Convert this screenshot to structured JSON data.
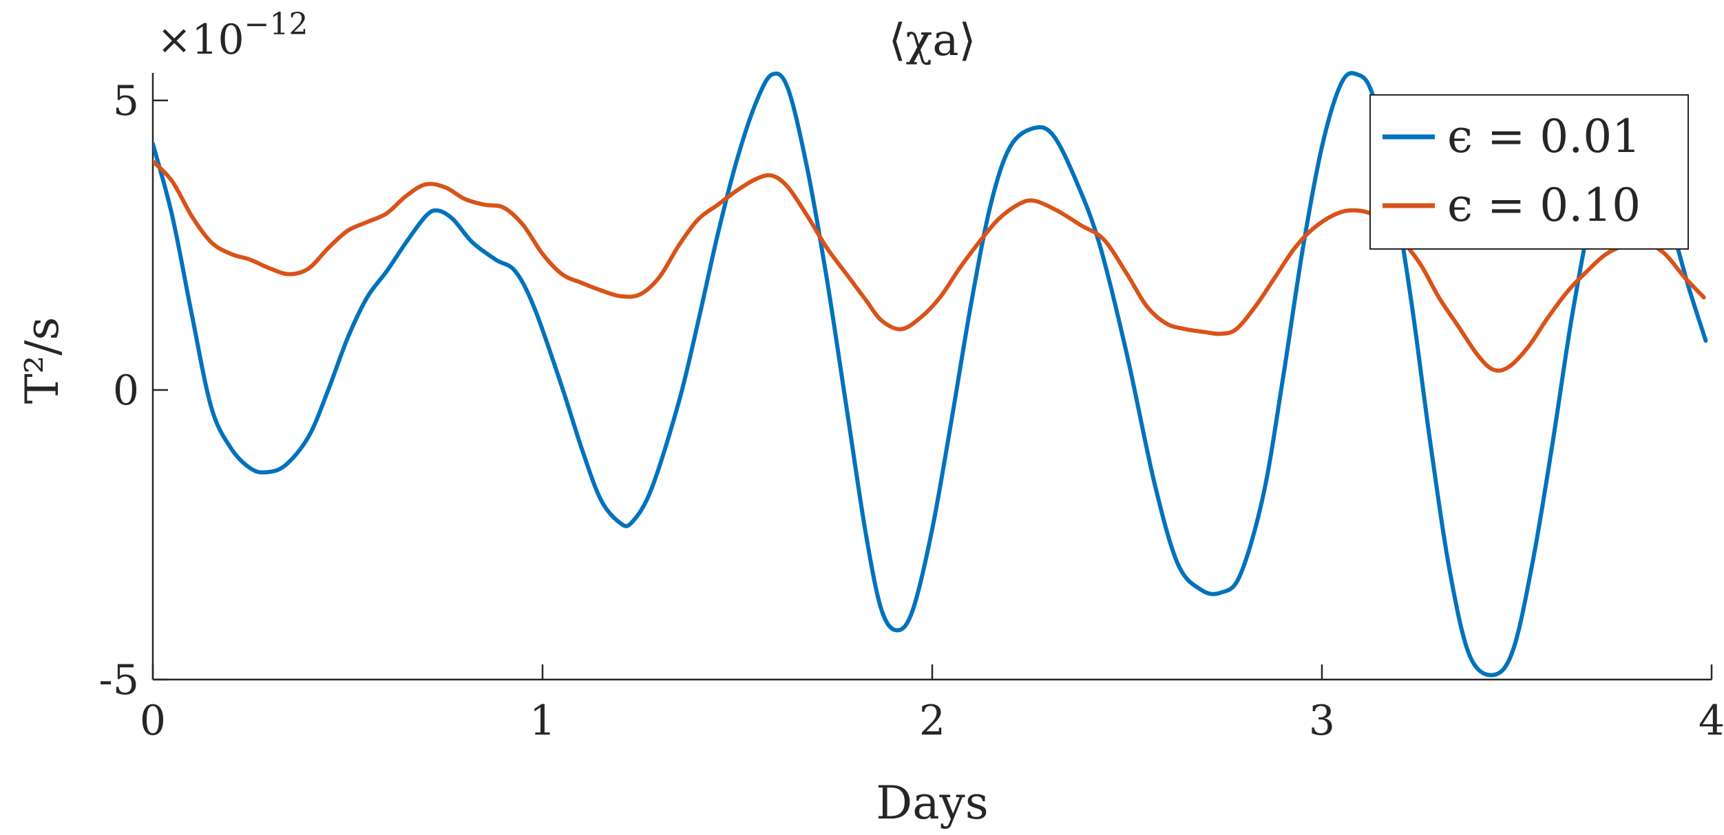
{
  "chart_data": {
    "type": "line",
    "title": "⟨χa⟩",
    "xlabel": "Days",
    "ylabel": "T²/s",
    "y_exponent_label": "×10",
    "y_exponent_power": "−12",
    "xlim": [
      0,
      4
    ],
    "ylim": [
      -5,
      5.5
    ],
    "x_ticks": [
      0,
      1,
      2,
      3,
      4
    ],
    "x_tick_labels": [
      "0",
      "1",
      "2",
      "3",
      "4"
    ],
    "y_ticks": [
      -5,
      0,
      5
    ],
    "y_tick_labels": [
      "-5",
      "0",
      "5"
    ],
    "grid": false,
    "legend_position": "top-right",
    "series": [
      {
        "name": "ϵ = 0.01",
        "color": "#0072BD",
        "points": [
          [
            0.0,
            4.25
          ],
          [
            0.05,
            3.0
          ],
          [
            0.1,
            1.3
          ],
          [
            0.15,
            -0.3
          ],
          [
            0.2,
            -1.0
          ],
          [
            0.25,
            -1.35
          ],
          [
            0.29,
            -1.42
          ],
          [
            0.34,
            -1.3
          ],
          [
            0.4,
            -0.8
          ],
          [
            0.45,
            0.0
          ],
          [
            0.5,
            0.9
          ],
          [
            0.55,
            1.6
          ],
          [
            0.6,
            2.05
          ],
          [
            0.65,
            2.55
          ],
          [
            0.7,
            3.0
          ],
          [
            0.73,
            3.1
          ],
          [
            0.77,
            2.95
          ],
          [
            0.82,
            2.55
          ],
          [
            0.88,
            2.25
          ],
          [
            0.93,
            2.05
          ],
          [
            0.98,
            1.4
          ],
          [
            1.05,
            0.05
          ],
          [
            1.1,
            -1.0
          ],
          [
            1.15,
            -1.9
          ],
          [
            1.2,
            -2.3
          ],
          [
            1.23,
            -2.28
          ],
          [
            1.28,
            -1.7
          ],
          [
            1.35,
            -0.2
          ],
          [
            1.4,
            1.2
          ],
          [
            1.45,
            2.7
          ],
          [
            1.5,
            4.0
          ],
          [
            1.55,
            5.0
          ],
          [
            1.59,
            5.45
          ],
          [
            1.63,
            5.2
          ],
          [
            1.68,
            3.8
          ],
          [
            1.73,
            1.9
          ],
          [
            1.78,
            -0.3
          ],
          [
            1.83,
            -2.5
          ],
          [
            1.87,
            -3.8
          ],
          [
            1.91,
            -4.15
          ],
          [
            1.95,
            -3.8
          ],
          [
            2.0,
            -2.4
          ],
          [
            2.05,
            -0.5
          ],
          [
            2.1,
            1.5
          ],
          [
            2.15,
            3.2
          ],
          [
            2.2,
            4.2
          ],
          [
            2.26,
            4.52
          ],
          [
            2.31,
            4.4
          ],
          [
            2.37,
            3.6
          ],
          [
            2.43,
            2.5
          ],
          [
            2.5,
            0.6
          ],
          [
            2.57,
            -1.6
          ],
          [
            2.63,
            -3.0
          ],
          [
            2.69,
            -3.45
          ],
          [
            2.74,
            -3.5
          ],
          [
            2.79,
            -3.2
          ],
          [
            2.85,
            -1.8
          ],
          [
            2.9,
            0.2
          ],
          [
            2.95,
            2.4
          ],
          [
            3.0,
            4.2
          ],
          [
            3.05,
            5.3
          ],
          [
            3.09,
            5.45
          ],
          [
            3.13,
            5.1
          ],
          [
            3.18,
            3.6
          ],
          [
            3.23,
            1.5
          ],
          [
            3.28,
            -1.0
          ],
          [
            3.33,
            -3.2
          ],
          [
            3.38,
            -4.6
          ],
          [
            3.44,
            -4.92
          ],
          [
            3.49,
            -4.5
          ],
          [
            3.54,
            -3.0
          ],
          [
            3.59,
            -1.0
          ],
          [
            3.64,
            1.2
          ],
          [
            3.69,
            3.0
          ],
          [
            3.74,
            4.2
          ],
          [
            3.79,
            4.4
          ],
          [
            3.84,
            4.0
          ],
          [
            3.89,
            3.0
          ],
          [
            3.94,
            1.8
          ],
          [
            3.985,
            0.85
          ]
        ]
      },
      {
        "name": "ϵ = 0.10",
        "color": "#D95319",
        "points": [
          [
            0.0,
            3.95
          ],
          [
            0.05,
            3.6
          ],
          [
            0.1,
            3.0
          ],
          [
            0.15,
            2.55
          ],
          [
            0.2,
            2.35
          ],
          [
            0.25,
            2.25
          ],
          [
            0.3,
            2.1
          ],
          [
            0.35,
            2.0
          ],
          [
            0.4,
            2.1
          ],
          [
            0.45,
            2.45
          ],
          [
            0.5,
            2.75
          ],
          [
            0.55,
            2.9
          ],
          [
            0.6,
            3.05
          ],
          [
            0.65,
            3.35
          ],
          [
            0.7,
            3.55
          ],
          [
            0.75,
            3.5
          ],
          [
            0.8,
            3.3
          ],
          [
            0.85,
            3.2
          ],
          [
            0.9,
            3.15
          ],
          [
            0.95,
            2.85
          ],
          [
            1.0,
            2.35
          ],
          [
            1.05,
            2.0
          ],
          [
            1.1,
            1.85
          ],
          [
            1.15,
            1.72
          ],
          [
            1.2,
            1.62
          ],
          [
            1.25,
            1.65
          ],
          [
            1.3,
            1.95
          ],
          [
            1.35,
            2.5
          ],
          [
            1.4,
            2.95
          ],
          [
            1.45,
            3.2
          ],
          [
            1.5,
            3.45
          ],
          [
            1.55,
            3.65
          ],
          [
            1.59,
            3.7
          ],
          [
            1.63,
            3.5
          ],
          [
            1.68,
            3.0
          ],
          [
            1.73,
            2.45
          ],
          [
            1.78,
            2.0
          ],
          [
            1.83,
            1.55
          ],
          [
            1.87,
            1.2
          ],
          [
            1.92,
            1.05
          ],
          [
            1.97,
            1.25
          ],
          [
            2.02,
            1.6
          ],
          [
            2.07,
            2.1
          ],
          [
            2.12,
            2.55
          ],
          [
            2.17,
            2.95
          ],
          [
            2.22,
            3.2
          ],
          [
            2.26,
            3.27
          ],
          [
            2.32,
            3.1
          ],
          [
            2.38,
            2.85
          ],
          [
            2.44,
            2.6
          ],
          [
            2.5,
            2.0
          ],
          [
            2.55,
            1.45
          ],
          [
            2.6,
            1.15
          ],
          [
            2.65,
            1.05
          ],
          [
            2.7,
            1.0
          ],
          [
            2.74,
            0.97
          ],
          [
            2.78,
            1.05
          ],
          [
            2.83,
            1.45
          ],
          [
            2.88,
            1.95
          ],
          [
            2.93,
            2.45
          ],
          [
            2.98,
            2.8
          ],
          [
            3.04,
            3.05
          ],
          [
            3.09,
            3.1
          ],
          [
            3.14,
            3.0
          ],
          [
            3.19,
            2.7
          ],
          [
            3.25,
            2.2
          ],
          [
            3.3,
            1.6
          ],
          [
            3.35,
            1.1
          ],
          [
            3.4,
            0.6
          ],
          [
            3.44,
            0.35
          ],
          [
            3.48,
            0.4
          ],
          [
            3.53,
            0.75
          ],
          [
            3.58,
            1.25
          ],
          [
            3.63,
            1.7
          ],
          [
            3.68,
            2.05
          ],
          [
            3.73,
            2.35
          ],
          [
            3.78,
            2.5
          ],
          [
            3.83,
            2.55
          ],
          [
            3.88,
            2.35
          ],
          [
            3.93,
            1.95
          ],
          [
            3.98,
            1.6
          ]
        ]
      }
    ]
  }
}
